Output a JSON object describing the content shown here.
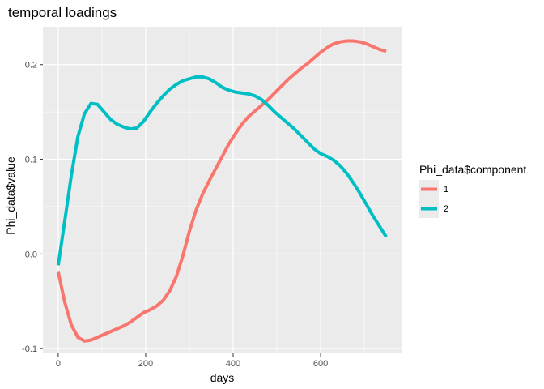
{
  "chart_data": {
    "type": "line",
    "title": "temporal loadings",
    "xlabel": "days",
    "ylabel": "Phi_data$value",
    "xlim": [
      -35,
      785
    ],
    "ylim": [
      -0.105,
      0.24
    ],
    "x_ticks": [
      0,
      200,
      400,
      600
    ],
    "x_tick_labels": [
      "0",
      "200",
      "400",
      "600"
    ],
    "y_ticks": [
      -0.1,
      0.0,
      0.1,
      0.2
    ],
    "y_tick_labels": [
      "-0.1",
      "0.0",
      "0.1",
      "0.2"
    ],
    "grid": true,
    "panel_background": "#ebebeb",
    "grid_color": "#ffffff",
    "legend": {
      "title": "Phi_data$component",
      "placement": "right"
    },
    "series": [
      {
        "name": "1",
        "color": "#f8766d",
        "x": [
          0,
          15,
          30,
          45,
          60,
          75,
          90,
          105,
          120,
          135,
          150,
          165,
          180,
          195,
          210,
          225,
          240,
          255,
          270,
          285,
          300,
          315,
          330,
          345,
          360,
          375,
          390,
          405,
          420,
          435,
          450,
          465,
          480,
          495,
          510,
          525,
          540,
          555,
          570,
          585,
          600,
          615,
          630,
          645,
          660,
          675,
          690,
          705,
          720,
          735,
          750
        ],
        "values": [
          -0.019,
          -0.051,
          -0.075,
          -0.088,
          -0.092,
          -0.091,
          -0.088,
          -0.085,
          -0.082,
          -0.079,
          -0.076,
          -0.072,
          -0.067,
          -0.062,
          -0.059,
          -0.055,
          -0.049,
          -0.039,
          -0.024,
          -0.002,
          0.024,
          0.046,
          0.063,
          0.077,
          0.09,
          0.103,
          0.116,
          0.127,
          0.137,
          0.145,
          0.151,
          0.157,
          0.163,
          0.17,
          0.177,
          0.184,
          0.19,
          0.196,
          0.201,
          0.207,
          0.213,
          0.218,
          0.222,
          0.224,
          0.225,
          0.225,
          0.224,
          0.222,
          0.219,
          0.216,
          0.214
        ]
      },
      {
        "name": "2",
        "color": "#00bfc4",
        "x": [
          0,
          15,
          30,
          45,
          60,
          75,
          90,
          105,
          120,
          135,
          150,
          165,
          180,
          195,
          210,
          225,
          240,
          255,
          270,
          285,
          300,
          315,
          330,
          345,
          360,
          375,
          390,
          405,
          420,
          435,
          450,
          465,
          480,
          495,
          510,
          525,
          540,
          555,
          570,
          585,
          600,
          615,
          630,
          645,
          660,
          675,
          690,
          705,
          720,
          735,
          750
        ],
        "values": [
          -0.012,
          0.035,
          0.083,
          0.124,
          0.148,
          0.159,
          0.158,
          0.15,
          0.142,
          0.137,
          0.134,
          0.132,
          0.133,
          0.14,
          0.15,
          0.159,
          0.167,
          0.174,
          0.179,
          0.183,
          0.185,
          0.187,
          0.187,
          0.185,
          0.181,
          0.176,
          0.173,
          0.171,
          0.17,
          0.169,
          0.167,
          0.163,
          0.157,
          0.15,
          0.144,
          0.138,
          0.132,
          0.125,
          0.118,
          0.111,
          0.106,
          0.103,
          0.099,
          0.093,
          0.085,
          0.075,
          0.064,
          0.052,
          0.04,
          0.029,
          0.018
        ]
      }
    ]
  }
}
